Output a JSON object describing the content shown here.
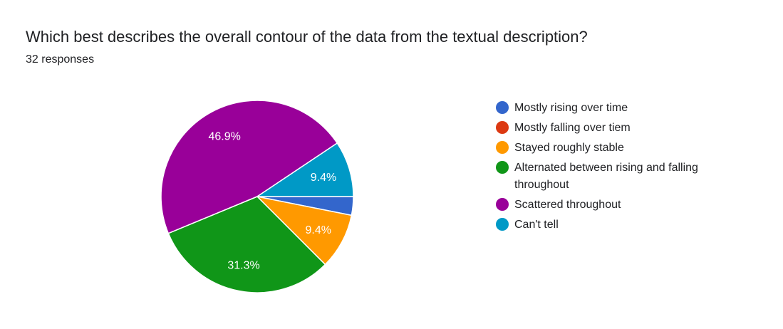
{
  "question": {
    "title": "Which best describes the overall contour of the data from the textual description?",
    "response_count": "32 responses"
  },
  "chart_data": {
    "type": "pie",
    "total_responses": 32,
    "categories": [
      "Mostly rising over time",
      "Mostly falling over tiem",
      "Stayed roughly stable",
      "Alternated between rising and falling throughout",
      "Scattered throughout",
      "Can't tell"
    ],
    "values": [
      1,
      0,
      3,
      10,
      15,
      3
    ],
    "percent_labels": [
      "",
      "",
      "9.4%",
      "31.3%",
      "46.9%",
      "9.4%"
    ],
    "colors": [
      "#3366cc",
      "#dc3912",
      "#ff9900",
      "#109618",
      "#990099",
      "#0099c6"
    ],
    "legend_position": "right"
  }
}
